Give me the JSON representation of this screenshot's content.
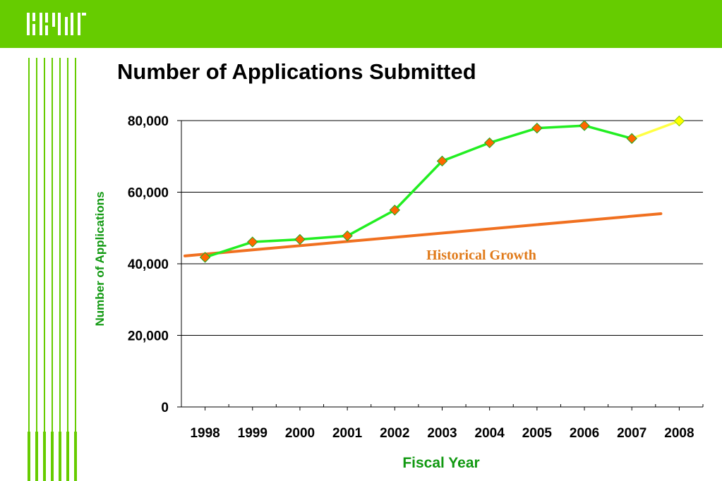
{
  "colors": {
    "accent": "#66cc00",
    "series_line": "#22ee22",
    "projection_line": "#ffff44",
    "marker": "#ff6600",
    "projection_marker": "#ffff00",
    "trend_line": "#f07020",
    "trend_label": "#e07a1a",
    "axis_title": "#119911"
  },
  "header": {
    "logo_icon": "organization-logo-icon"
  },
  "chart_data": {
    "type": "line",
    "title": "Number of Applications Submitted",
    "xlabel": "Fiscal Year",
    "ylabel": "Number of Applications",
    "categories": [
      "1998",
      "1999",
      "2000",
      "2001",
      "2002",
      "2003",
      "2004",
      "2005",
      "2006",
      "2007",
      "2008"
    ],
    "y_tick_labels": [
      "0",
      "20,000",
      "40,000",
      "60,000",
      "80,000"
    ],
    "y_ticks": [
      0,
      20000,
      40000,
      60000,
      80000
    ],
    "ylim": [
      0,
      80000
    ],
    "grid": true,
    "series": [
      {
        "values": [
          41800,
          46100,
          46800,
          47800,
          55000,
          68700,
          73800,
          77900,
          78600,
          75000,
          79900
        ]
      }
    ],
    "trend_line": {
      "label": "Historical Growth",
      "start": {
        "x": "1998",
        "y": 42200
      },
      "end": {
        "x": "2008",
        "y": 54000
      }
    }
  }
}
